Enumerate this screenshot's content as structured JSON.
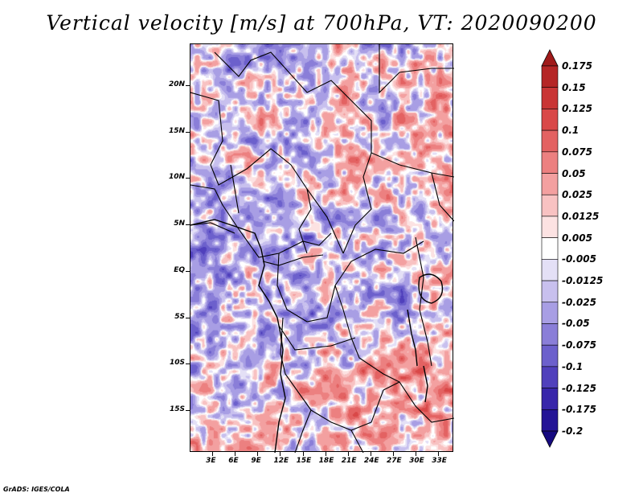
{
  "title": "Vertical velocity [m/s] at 700hPa, VT: 2020090200",
  "credit": "GrADS: IGES/COLA",
  "map": {
    "lat_labels": [
      "20N",
      "15N",
      "10N",
      "5N",
      "EQ",
      "5S",
      "10S",
      "15S"
    ],
    "lat_values": [
      20,
      15,
      10,
      5,
      0,
      -5,
      -10,
      -15
    ],
    "lon_labels": [
      "3E",
      "6E",
      "9E",
      "12E",
      "15E",
      "18E",
      "21E",
      "24E",
      "27E",
      "30E",
      "33E"
    ],
    "lon_values": [
      3,
      6,
      9,
      12,
      15,
      18,
      21,
      24,
      27,
      30,
      33
    ],
    "lat_range": [
      -19.5,
      24.5
    ],
    "lon_range": [
      0,
      35
    ]
  },
  "colorbar": {
    "labels": [
      "0.175",
      "0.15",
      "0.125",
      "0.1",
      "0.075",
      "0.05",
      "0.025",
      "0.0125",
      "0.005",
      "-0.005",
      "-0.0125",
      "-0.025",
      "-0.05",
      "-0.075",
      "-0.1",
      "-0.125",
      "-0.175",
      "-0.2"
    ],
    "colors": [
      "#a01a1a",
      "#b52525",
      "#c93535",
      "#d94848",
      "#e36262",
      "#ec8080",
      "#f3a0a0",
      "#f8c2c2",
      "#fce2e2",
      "#ffffff",
      "#e4e0f6",
      "#c8c0ee",
      "#a89ee4",
      "#8a7ed8",
      "#6c60cc",
      "#5040bc",
      "#3826aa",
      "#241496",
      "#160a80"
    ]
  }
}
